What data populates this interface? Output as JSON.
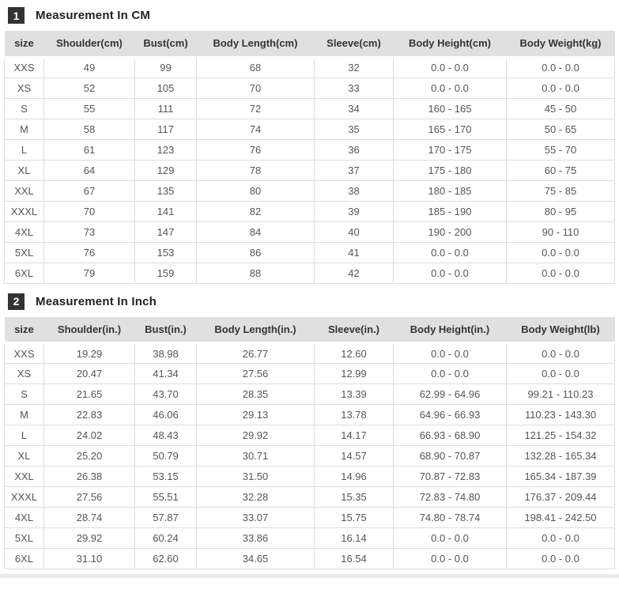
{
  "colors": {
    "badge_bg": "#333333",
    "badge_text": "#ffffff",
    "header_row_bg": "#e0e0e0",
    "header_text": "#333333",
    "body_text": "#555555",
    "cell_border": "#dddddd",
    "bottom_divider": "#e9e9e9"
  },
  "sections": [
    {
      "badge": "1",
      "title": "Measurement In CM",
      "columns": [
        "size",
        "Shoulder(cm)",
        "Bust(cm)",
        "Body Length(cm)",
        "Sleeve(cm)",
        "Body Height(cm)",
        "Body Weight(kg)"
      ],
      "rows": [
        [
          "XXS",
          "49",
          "99",
          "68",
          "32",
          "0.0 - 0.0",
          "0.0 - 0.0"
        ],
        [
          "XS",
          "52",
          "105",
          "70",
          "33",
          "0.0 - 0.0",
          "0.0 - 0.0"
        ],
        [
          "S",
          "55",
          "111",
          "72",
          "34",
          "160 - 165",
          "45 - 50"
        ],
        [
          "M",
          "58",
          "117",
          "74",
          "35",
          "165 - 170",
          "50 - 65"
        ],
        [
          "L",
          "61",
          "123",
          "76",
          "36",
          "170 - 175",
          "55 - 70"
        ],
        [
          "XL",
          "64",
          "129",
          "78",
          "37",
          "175 - 180",
          "60 - 75"
        ],
        [
          "XXL",
          "67",
          "135",
          "80",
          "38",
          "180 - 185",
          "75 - 85"
        ],
        [
          "XXXL",
          "70",
          "141",
          "82",
          "39",
          "185 - 190",
          "80 - 95"
        ],
        [
          "4XL",
          "73",
          "147",
          "84",
          "40",
          "190 - 200",
          "90 - 110"
        ],
        [
          "5XL",
          "76",
          "153",
          "86",
          "41",
          "0.0 - 0.0",
          "0.0 - 0.0"
        ],
        [
          "6XL",
          "79",
          "159",
          "88",
          "42",
          "0.0 - 0.0",
          "0.0 - 0.0"
        ]
      ]
    },
    {
      "badge": "2",
      "title": "Measurement In Inch",
      "columns": [
        "size",
        "Shoulder(in.)",
        "Bust(in.)",
        "Body Length(in.)",
        "Sleeve(in.)",
        "Body Height(in.)",
        "Body Weight(lb)"
      ],
      "rows": [
        [
          "XXS",
          "19.29",
          "38.98",
          "26.77",
          "12.60",
          "0.0 - 0.0",
          "0.0 - 0.0"
        ],
        [
          "XS",
          "20.47",
          "41.34",
          "27.56",
          "12.99",
          "0.0 - 0.0",
          "0.0 - 0.0"
        ],
        [
          "S",
          "21.65",
          "43.70",
          "28.35",
          "13.39",
          "62.99 - 64.96",
          "99.21 - 110.23"
        ],
        [
          "M",
          "22.83",
          "46.06",
          "29.13",
          "13.78",
          "64.96 - 66.93",
          "110.23 - 143.30"
        ],
        [
          "L",
          "24.02",
          "48.43",
          "29.92",
          "14.17",
          "66.93 - 68.90",
          "121.25 - 154.32"
        ],
        [
          "XL",
          "25.20",
          "50.79",
          "30.71",
          "14.57",
          "68.90 - 70.87",
          "132.28 - 165.34"
        ],
        [
          "XXL",
          "26.38",
          "53.15",
          "31.50",
          "14.96",
          "70.87 - 72.83",
          "165.34 - 187.39"
        ],
        [
          "XXXL",
          "27.56",
          "55.51",
          "32.28",
          "15.35",
          "72.83 - 74.80",
          "176.37 - 209.44"
        ],
        [
          "4XL",
          "28.74",
          "57.87",
          "33.07",
          "15.75",
          "74.80 - 78.74",
          "198.41 - 242.50"
        ],
        [
          "5XL",
          "29.92",
          "60.24",
          "33.86",
          "16.14",
          "0.0 - 0.0",
          "0.0 - 0.0"
        ],
        [
          "6XL",
          "31.10",
          "62.60",
          "34.65",
          "16.54",
          "0.0 - 0.0",
          "0.0 - 0.0"
        ]
      ]
    }
  ]
}
